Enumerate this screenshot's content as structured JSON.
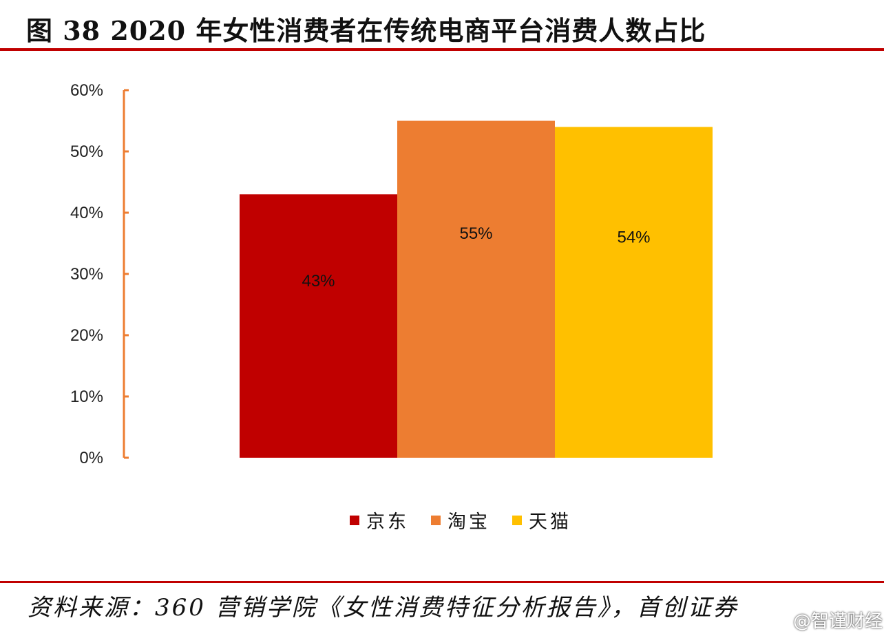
{
  "figure": {
    "title": "图 38 2020 年女性消费者在传统电商平台消费人数占比",
    "source": "资料来源：360 营销学院《女性消费特征分析报告》，首创证券",
    "watermark": "@智谨财经"
  },
  "chart_data": {
    "type": "bar",
    "title": "",
    "xlabel": "",
    "ylabel": "",
    "categories": [
      "京东",
      "淘宝",
      "天猫"
    ],
    "values": [
      43,
      55,
      54
    ],
    "value_format": "percent",
    "data_labels": [
      "43%",
      "55%",
      "54%"
    ],
    "ylim": [
      0,
      60
    ],
    "yticks": [
      0,
      10,
      20,
      30,
      40,
      50,
      60
    ],
    "ytick_labels": [
      "0%",
      "10%",
      "20%",
      "30%",
      "40%",
      "50%",
      "60%"
    ],
    "grid": false,
    "legend": {
      "position": "bottom",
      "entries": [
        "京东",
        "淘宝",
        "天猫"
      ]
    },
    "colors": [
      "#c00000",
      "#ed7d31",
      "#ffc000"
    ],
    "axis_color": "#ed7d31"
  }
}
